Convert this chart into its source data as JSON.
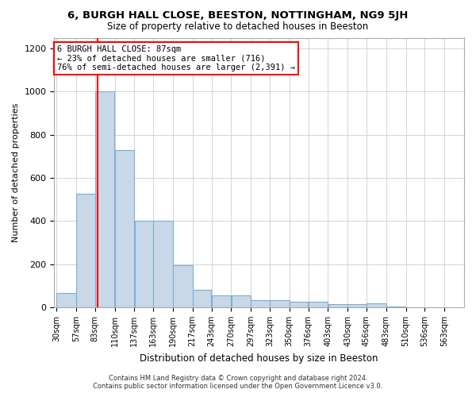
{
  "title": "6, BURGH HALL CLOSE, BEESTON, NOTTINGHAM, NG9 5JH",
  "subtitle": "Size of property relative to detached houses in Beeston",
  "xlabel": "Distribution of detached houses by size in Beeston",
  "ylabel": "Number of detached properties",
  "bar_edges": [
    30,
    57,
    83,
    110,
    137,
    163,
    190,
    217,
    243,
    270,
    297,
    323,
    350,
    376,
    403,
    430,
    456,
    483,
    510,
    536,
    563
  ],
  "bar_heights": [
    65,
    525,
    1000,
    730,
    400,
    400,
    195,
    80,
    55,
    55,
    35,
    35,
    25,
    25,
    15,
    15,
    20,
    5,
    2,
    2
  ],
  "bar_color": "#c8d8e8",
  "bar_edge_color": "#7bafd4",
  "grid_color": "#cccccc",
  "red_line_x": 87,
  "annotation_text_line1": "6 BURGH HALL CLOSE: 87sqm",
  "annotation_text_line2": "← 23% of detached houses are smaller (716)",
  "annotation_text_line3": "76% of semi-detached houses are larger (2,391) →",
  "ylim": [
    0,
    1250
  ],
  "yticks": [
    0,
    200,
    400,
    600,
    800,
    1000,
    1200
  ],
  "footer_line1": "Contains HM Land Registry data © Crown copyright and database right 2024.",
  "footer_line2": "Contains public sector information licensed under the Open Government Licence v3.0."
}
